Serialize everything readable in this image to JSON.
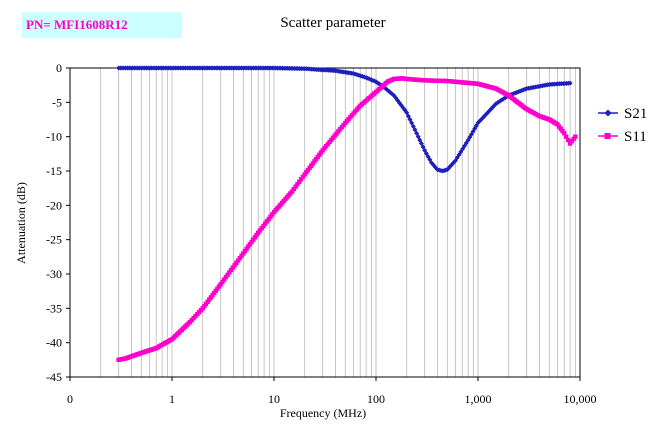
{
  "badge": {
    "text": "PN= MFI1608R12"
  },
  "chart_data": {
    "type": "line",
    "title": "Scatter parameter",
    "xlabel": "Frequency (MHz)",
    "ylabel": "Attenuation (dB)",
    "x_scale": "log",
    "xlim": [
      0.1,
      10000
    ],
    "ylim": [
      -45,
      0
    ],
    "x_tick_labels": [
      "0",
      "1",
      "10",
      "100",
      "1,000",
      "10,000"
    ],
    "y_ticks": [
      0,
      -5,
      -10,
      -15,
      -20,
      -25,
      -30,
      -35,
      -40,
      -45
    ],
    "grid": "vertical minor log gridlines",
    "legend_position": "right",
    "series": [
      {
        "name": "S21",
        "color": "#1f1fbf",
        "marker": "diamond",
        "x": [
          0.3,
          0.5,
          1,
          2,
          5,
          10,
          20,
          40,
          60,
          80,
          100,
          120,
          150,
          200,
          250,
          300,
          350,
          400,
          450,
          500,
          600,
          800,
          1000,
          1500,
          2000,
          3000,
          5000,
          8000
        ],
        "y": [
          0,
          0,
          0,
          0,
          0,
          0,
          -0.1,
          -0.4,
          -0.8,
          -1.4,
          -2.0,
          -2.8,
          -4.0,
          -6.5,
          -9.5,
          -12.0,
          -13.8,
          -14.8,
          -15.0,
          -14.8,
          -13.5,
          -10.5,
          -8.0,
          -5.2,
          -4.0,
          -3.0,
          -2.4,
          -2.2
        ]
      },
      {
        "name": "S11",
        "color": "#ff00cc",
        "marker": "square",
        "x": [
          0.3,
          0.35,
          0.4,
          0.5,
          0.7,
          1,
          1.5,
          2,
          3,
          5,
          7,
          10,
          15,
          20,
          30,
          50,
          70,
          100,
          130,
          150,
          180,
          200,
          300,
          500,
          1000,
          1500,
          2000,
          3000,
          4000,
          5000,
          6000,
          7000,
          8000,
          9000
        ],
        "y": [
          -42.5,
          -42.3,
          -42,
          -41.5,
          -40.8,
          -39.5,
          -37,
          -35,
          -31.5,
          -27,
          -24,
          -21,
          -18,
          -15.5,
          -12,
          -8,
          -5.5,
          -3.5,
          -2.0,
          -1.6,
          -1.5,
          -1.6,
          -1.8,
          -1.9,
          -2.3,
          -3.0,
          -4.0,
          -6.0,
          -7.0,
          -7.5,
          -8.2,
          -9.5,
          -11.0,
          -10.0
        ]
      }
    ]
  }
}
